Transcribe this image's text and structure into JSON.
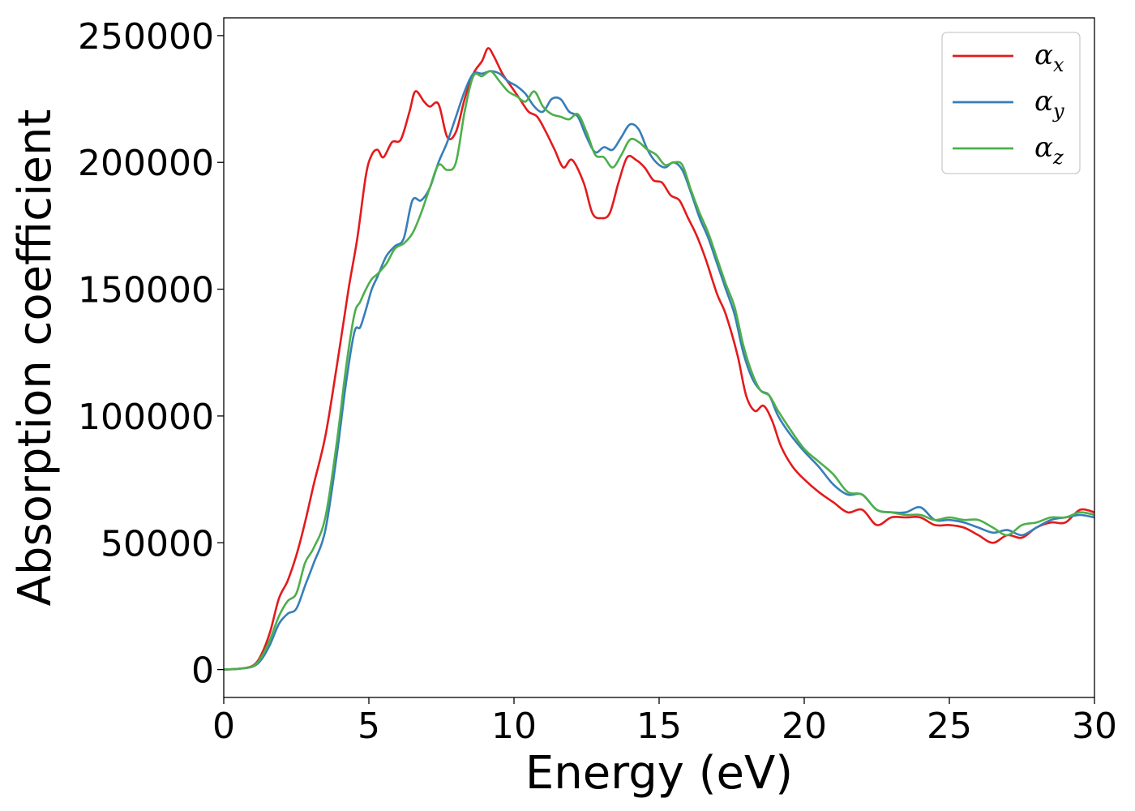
{
  "chart_data": {
    "type": "line",
    "xlabel": "Energy (eV)",
    "ylabel": "Absorption coefficient",
    "xlim": [
      0,
      30
    ],
    "ylim": [
      -11000,
      257000
    ],
    "xticks": [
      0,
      5,
      10,
      15,
      20,
      25,
      30
    ],
    "yticks": [
      0,
      50000,
      100000,
      150000,
      200000,
      250000
    ],
    "xtick_labels": [
      "0",
      "5",
      "10",
      "15",
      "20",
      "25",
      "30"
    ],
    "ytick_labels": [
      "0",
      "50000",
      "100000",
      "150000",
      "200000",
      "250000"
    ],
    "grid": false,
    "legend_position": "top-right",
    "series": [
      {
        "name": "α",
        "subscript": "x",
        "color": "#e41a1c",
        "x": [
          0,
          0.5,
          1.0,
          1.3,
          1.6,
          1.9,
          2.2,
          2.5,
          2.8,
          3.1,
          3.5,
          3.9,
          4.3,
          4.6,
          4.9,
          5.1,
          5.3,
          5.5,
          5.8,
          6.1,
          6.4,
          6.6,
          6.9,
          7.1,
          7.4,
          7.7,
          8.0,
          8.3,
          8.6,
          8.9,
          9.1,
          9.3,
          9.6,
          9.9,
          10.2,
          10.5,
          10.8,
          11.1,
          11.4,
          11.7,
          12.0,
          12.4,
          12.7,
          13.0,
          13.3,
          13.6,
          13.9,
          14.2,
          14.5,
          14.8,
          15.1,
          15.4,
          15.7,
          16.0,
          16.3,
          16.6,
          17.0,
          17.3,
          17.7,
          18.0,
          18.3,
          18.6,
          18.9,
          19.2,
          19.6,
          20.0,
          20.5,
          21.0,
          21.5,
          22.0,
          22.5,
          23.0,
          23.5,
          24.0,
          24.5,
          25.0,
          25.5,
          26.0,
          26.5,
          27.0,
          27.5,
          28.0,
          28.5,
          29.0,
          29.5,
          30.0
        ],
        "y": [
          0,
          300,
          1500,
          6000,
          15000,
          28000,
          35000,
          45000,
          58000,
          73000,
          92000,
          120000,
          150000,
          170000,
          195000,
          203000,
          205000,
          202000,
          208000,
          209000,
          220000,
          228000,
          224000,
          222000,
          223000,
          210000,
          212000,
          225000,
          235000,
          240000,
          245000,
          242000,
          235000,
          230000,
          225000,
          220000,
          218000,
          212000,
          205000,
          198000,
          201000,
          192000,
          180000,
          178000,
          180000,
          192000,
          202000,
          201000,
          198000,
          193000,
          192000,
          187000,
          185000,
          178000,
          171000,
          162000,
          148000,
          140000,
          124000,
          108000,
          102000,
          104000,
          98000,
          88000,
          80000,
          75000,
          70000,
          66000,
          62000,
          63000,
          57000,
          60000,
          60000,
          60000,
          57000,
          57000,
          56000,
          53000,
          50000,
          53000,
          52000,
          56000,
          58000,
          58000,
          63000,
          62000
        ]
      },
      {
        "name": "α",
        "subscript": "y",
        "color": "#377eb8",
        "x": [
          0,
          0.5,
          1.0,
          1.3,
          1.6,
          1.9,
          2.2,
          2.5,
          2.8,
          3.1,
          3.5,
          3.9,
          4.2,
          4.5,
          4.7,
          4.9,
          5.1,
          5.3,
          5.6,
          5.9,
          6.2,
          6.5,
          6.8,
          7.1,
          7.4,
          7.7,
          8.0,
          8.3,
          8.6,
          8.9,
          9.2,
          9.5,
          9.8,
          10.1,
          10.4,
          10.7,
          11.0,
          11.3,
          11.6,
          11.9,
          12.2,
          12.5,
          12.8,
          13.1,
          13.4,
          13.7,
          14.0,
          14.3,
          14.6,
          14.9,
          15.2,
          15.5,
          15.8,
          16.1,
          16.4,
          16.7,
          17.0,
          17.3,
          17.6,
          17.9,
          18.2,
          18.5,
          18.8,
          19.1,
          19.5,
          20.0,
          20.5,
          21.0,
          21.5,
          22.0,
          22.5,
          23.0,
          23.5,
          24.0,
          24.5,
          25.0,
          25.5,
          26.0,
          26.5,
          27.0,
          27.5,
          28.0,
          28.5,
          29.0,
          29.5,
          30.0
        ],
        "y": [
          0,
          300,
          1200,
          4000,
          10000,
          18000,
          22000,
          24000,
          33000,
          42000,
          55000,
          85000,
          112000,
          133000,
          135000,
          142000,
          150000,
          155000,
          163000,
          167000,
          170000,
          185000,
          185000,
          190000,
          200000,
          208000,
          218000,
          228000,
          235000,
          235000,
          236000,
          235000,
          232000,
          230000,
          227000,
          222000,
          220000,
          225000,
          225000,
          220000,
          218000,
          210000,
          204000,
          206000,
          205000,
          210000,
          215000,
          213000,
          205000,
          200000,
          198000,
          200000,
          197000,
          188000,
          178000,
          170000,
          160000,
          150000,
          140000,
          125000,
          115000,
          110000,
          108000,
          100000,
          93000,
          86000,
          80000,
          73000,
          69000,
          69000,
          63000,
          62000,
          62000,
          64000,
          59000,
          59000,
          58000,
          56000,
          54000,
          55000,
          53000,
          56000,
          59000,
          60000,
          61000,
          60000
        ]
      },
      {
        "name": "α",
        "subscript": "z",
        "color": "#4daf4a",
        "x": [
          0,
          0.5,
          1.0,
          1.3,
          1.6,
          1.9,
          2.2,
          2.5,
          2.8,
          3.1,
          3.5,
          3.9,
          4.2,
          4.5,
          4.7,
          4.9,
          5.1,
          5.3,
          5.6,
          5.9,
          6.2,
          6.5,
          6.8,
          7.1,
          7.4,
          7.7,
          8.0,
          8.3,
          8.6,
          8.9,
          9.2,
          9.5,
          9.8,
          10.1,
          10.4,
          10.7,
          11.0,
          11.3,
          11.6,
          11.9,
          12.2,
          12.5,
          12.8,
          13.1,
          13.4,
          13.7,
          14.0,
          14.3,
          14.6,
          14.9,
          15.2,
          15.5,
          15.8,
          16.1,
          16.4,
          16.7,
          17.0,
          17.3,
          17.6,
          17.9,
          18.2,
          18.5,
          18.8,
          19.1,
          19.5,
          20.0,
          20.5,
          21.0,
          21.5,
          22.0,
          22.5,
          23.0,
          23.5,
          24.0,
          24.5,
          25.0,
          25.5,
          26.0,
          26.5,
          27.0,
          27.5,
          28.0,
          28.5,
          29.0,
          29.5,
          30.0
        ],
        "y": [
          0,
          300,
          1300,
          5000,
          12000,
          21000,
          27000,
          30000,
          42000,
          48000,
          60000,
          90000,
          118000,
          140000,
          145000,
          150000,
          154000,
          156000,
          160000,
          166000,
          168000,
          172000,
          180000,
          190000,
          199000,
          197000,
          200000,
          220000,
          234000,
          234000,
          236000,
          232000,
          228000,
          226000,
          224000,
          228000,
          222000,
          219000,
          218000,
          217000,
          219000,
          212000,
          203000,
          202000,
          198000,
          203000,
          209000,
          208000,
          205000,
          203000,
          199000,
          200000,
          199000,
          189000,
          180000,
          172000,
          162000,
          152000,
          143000,
          128000,
          117000,
          110000,
          108000,
          102000,
          95000,
          87000,
          82000,
          77000,
          70000,
          69000,
          63000,
          62000,
          61000,
          61000,
          59000,
          60000,
          59000,
          59000,
          56000,
          53000,
          57000,
          58000,
          60000,
          60000,
          62000,
          61000
        ]
      }
    ]
  }
}
